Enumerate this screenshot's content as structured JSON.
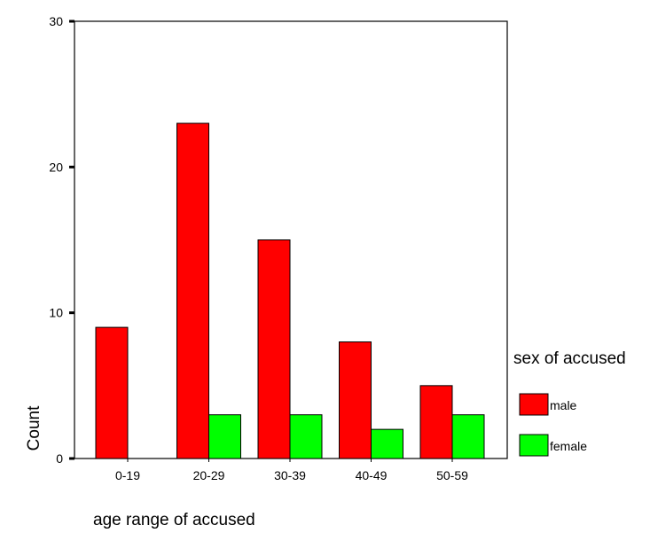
{
  "chart_data": {
    "type": "bar",
    "categories": [
      "0-19",
      "20-29",
      "30-39",
      "40-49",
      "50-59"
    ],
    "series": [
      {
        "name": "male",
        "values": [
          9,
          23,
          15,
          8,
          5
        ],
        "color": "#ff0000"
      },
      {
        "name": "female",
        "values": [
          0,
          3,
          3,
          2,
          3
        ],
        "color": "#00ff00"
      }
    ],
    "title": "",
    "xlabel": "age range of accused",
    "ylabel": "Count",
    "ylim": [
      0,
      30
    ],
    "yticks": [
      "0",
      "10",
      "20",
      "30"
    ],
    "legend": {
      "title": "sex of accused",
      "placement": "right"
    },
    "grid": false
  }
}
